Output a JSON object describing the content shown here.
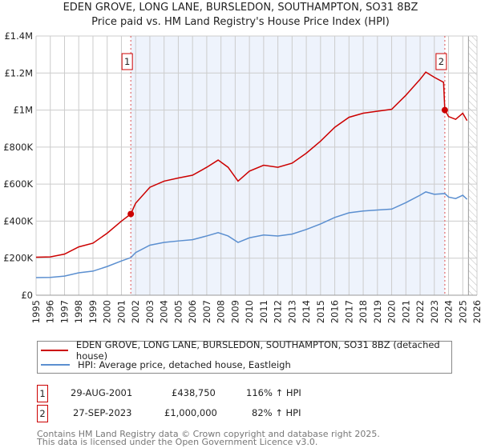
{
  "title": "EDEN GROVE, LONG LANE, BURSLEDON, SOUTHAMPTON, SO31 8BZ",
  "subtitle": "Price paid vs. HM Land Registry's House Price Index (HPI)",
  "chart_data": {
    "type": "line",
    "title": "EDEN GROVE, LONG LANE, BURSLEDON, SOUTHAMPTON, SO31 8BZ",
    "xlim": [
      1995,
      2026
    ],
    "ylim": [
      0,
      1400000
    ],
    "x_ticks": [
      "1995",
      "1996",
      "1997",
      "1998",
      "1999",
      "2000",
      "2001",
      "2002",
      "2003",
      "2004",
      "2005",
      "2006",
      "2007",
      "2008",
      "2009",
      "2010",
      "2011",
      "2012",
      "2013",
      "2014",
      "2015",
      "2016",
      "2017",
      "2018",
      "2019",
      "2020",
      "2021",
      "2022",
      "2023",
      "2024",
      "2025",
      "2026"
    ],
    "y_ticks": [
      {
        "v": 0,
        "label": "£0"
      },
      {
        "v": 200000,
        "label": "£200K"
      },
      {
        "v": 400000,
        "label": "£400K"
      },
      {
        "v": 600000,
        "label": "£600K"
      },
      {
        "v": 800000,
        "label": "£800K"
      },
      {
        "v": 1000000,
        "label": "£1M"
      },
      {
        "v": 1200000,
        "label": "£1.2M"
      },
      {
        "v": 1400000,
        "label": "£1.4M"
      }
    ],
    "grid": true,
    "shaded_range": [
      2001.66,
      2023.74
    ],
    "hatched_from": 2025.4,
    "series": [
      {
        "name": "EDEN GROVE, LONG LANE, BURSLEDON, SOUTHAMPTON, SO31 8BZ (detached house)",
        "color": "#cc0000",
        "x": [
          1995,
          1996,
          1997,
          1998,
          1999,
          2000,
          2001,
          2001.66,
          2002,
          2003,
          2004,
          2005,
          2006,
          2007,
          2007.8,
          2008.5,
          2009.2,
          2010,
          2011,
          2012,
          2013,
          2014,
          2015,
          2016,
          2017,
          2018,
          2019,
          2020,
          2021,
          2022,
          2022.4,
          2023,
          2023.65,
          2023.74,
          2024,
          2024.5,
          2025,
          2025.3
        ],
        "y": [
          205000,
          207000,
          222000,
          261000,
          281000,
          335000,
          400000,
          438750,
          497000,
          583000,
          616000,
          633000,
          648000,
          691000,
          730000,
          691000,
          616000,
          670000,
          702000,
          691000,
          713000,
          767000,
          832000,
          907000,
          961000,
          983000,
          994000,
          1004000,
          1080000,
          1166000,
          1205000,
          1177000,
          1150000,
          1000000,
          965000,
          950000,
          983000,
          943000
        ]
      },
      {
        "name": "HPI: Average price, detached house, Eastleigh",
        "color": "#5b8fd0",
        "x": [
          1995,
          1996,
          1997,
          1998,
          1999,
          2000,
          2001,
          2001.66,
          2002,
          2003,
          2004,
          2005,
          2006,
          2007,
          2007.8,
          2008.5,
          2009.2,
          2010,
          2011,
          2012,
          2013,
          2014,
          2015,
          2016,
          2017,
          2018,
          2019,
          2020,
          2021,
          2022,
          2022.4,
          2023,
          2023.74,
          2024,
          2024.5,
          2025,
          2025.3
        ],
        "y": [
          95000,
          96000,
          103000,
          121000,
          130000,
          155000,
          185000,
          203000,
          230000,
          270000,
          285000,
          293000,
          300000,
          320000,
          338000,
          320000,
          285000,
          310000,
          325000,
          320000,
          330000,
          355000,
          385000,
          420000,
          445000,
          455000,
          460000,
          465000,
          500000,
          540000,
          558000,
          545000,
          549000,
          530000,
          522000,
          540000,
          518000
        ]
      }
    ],
    "sales": [
      {
        "label": "1",
        "x": 2001.66,
        "y": 438750
      },
      {
        "label": "2",
        "x": 2023.74,
        "y": 1000000
      }
    ]
  },
  "legend": {
    "property": "EDEN GROVE, LONG LANE, BURSLEDON, SOUTHAMPTON, SO31 8BZ (detached house)",
    "hpi": "HPI: Average price, detached house, Eastleigh"
  },
  "transactions": [
    {
      "num": "1",
      "date": "29-AUG-2001",
      "price": "£438,750",
      "hpi": "116% ↑ HPI"
    },
    {
      "num": "2",
      "date": "27-SEP-2023",
      "price": "£1,000,000",
      "hpi": "82% ↑ HPI"
    }
  ],
  "footer": {
    "line1": "Contains HM Land Registry data © Crown copyright and database right 2025.",
    "line2": "This data is licensed under the Open Government Licence v3.0."
  }
}
